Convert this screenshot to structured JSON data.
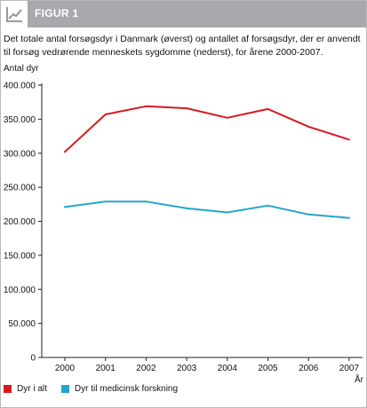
{
  "header": {
    "title": "FIGUR 1",
    "icon": "line-chart-icon",
    "bg_color": "#a7a9ac"
  },
  "caption": "Det totale antal forsøgsdyr i Danmark (øverst) og antallet af forsøgsdyr, der er anvendt til forsøg vedrørende menneskets sygdomme (nederst), for årene 2000-2007.",
  "chart_data": {
    "type": "line",
    "ylabel": "Antal dyr",
    "xlabel": "År",
    "x": [
      "2000",
      "2001",
      "2002",
      "2003",
      "2004",
      "2005",
      "2006",
      "2007"
    ],
    "ylim": [
      0,
      400000
    ],
    "yticks": [
      0,
      50000,
      100000,
      150000,
      200000,
      250000,
      300000,
      350000,
      400000
    ],
    "ytick_labels": [
      "0",
      "50.000",
      "100.000",
      "150.000",
      "200.000",
      "250.000",
      "300.000",
      "350.000",
      "400.000"
    ],
    "grid": false,
    "legend_position": "bottom-left",
    "series": [
      {
        "name": "Dyr i alt",
        "color": "#d7191f",
        "values": [
          302000,
          357000,
          369000,
          366000,
          352000,
          365000,
          339000,
          320000
        ]
      },
      {
        "name": "Dyr til medicinsk forskning",
        "color": "#23a6cd",
        "values": [
          221000,
          229000,
          229000,
          219000,
          213000,
          223000,
          210000,
          205000
        ]
      }
    ]
  }
}
